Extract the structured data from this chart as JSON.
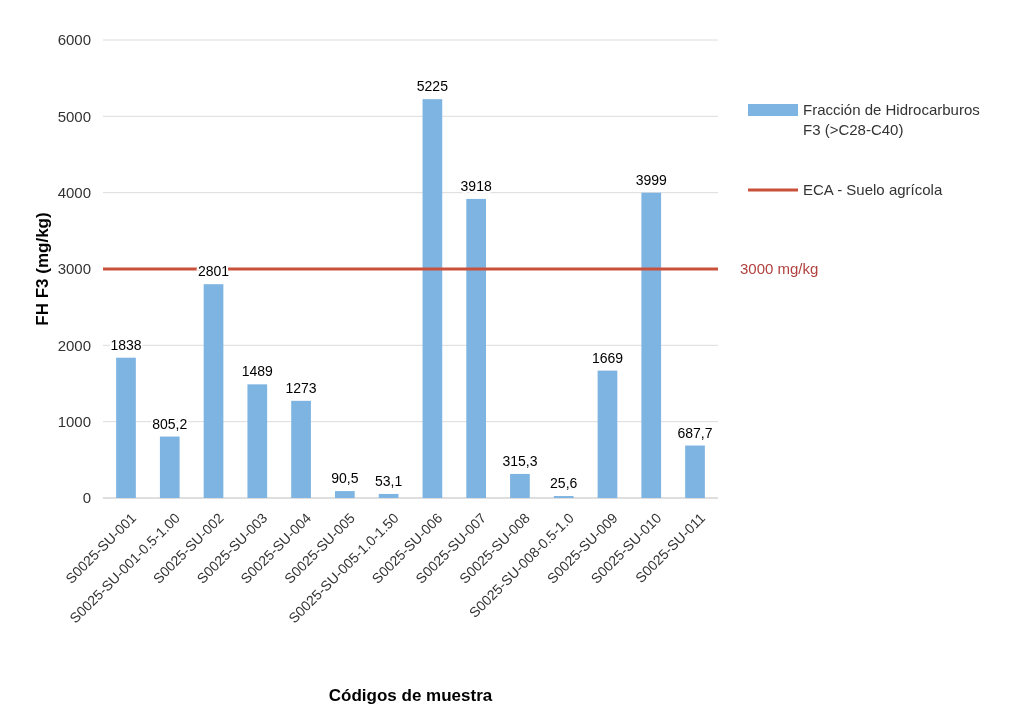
{
  "chart_data": {
    "type": "bar",
    "xlabel": "Códigos de muestra",
    "ylabel": "FH F3 (mg/kg)",
    "categories": [
      "S0025-SU-001",
      "S0025-SU-001-0.5-1.00",
      "S0025-SU-002",
      "S0025-SU-003",
      "S0025-SU-004",
      "S0025-SU-005",
      "S0025-SU-005-1.0-1.50",
      "S0025-SU-006",
      "S0025-SU-007",
      "S0025-SU-008",
      "S0025-SU-008-0.5-1.0",
      "S0025-SU-009",
      "S0025-SU-010",
      "S0025-SU-011"
    ],
    "series": [
      {
        "name": "Fracción de Hidrocarburos F3 (>C28-C40)",
        "color": "#7eb4e2",
        "values": [
          1838,
          805.2,
          2801,
          1489,
          1273,
          90.5,
          53.1,
          5225,
          3918,
          315.3,
          25.6,
          1669,
          3999,
          687.7
        ],
        "value_labels": [
          "1838",
          "805,2",
          "2801",
          "1489",
          "1273",
          "90,5",
          "53,1",
          "5225",
          "3918",
          "315,3",
          "25,6",
          "1669",
          "3999",
          "687,7"
        ]
      }
    ],
    "ref_lines": [
      {
        "axis": "y",
        "value": 3000,
        "label": "ECA - Suelo agrícola",
        "color": "#c9503a"
      }
    ],
    "annotations": [
      "3000 mg/kg"
    ],
    "ylim": [
      0,
      6000
    ],
    "yticks": [
      0,
      1000,
      2000,
      3000,
      4000,
      5000,
      6000
    ],
    "grid": "y",
    "legend": "right"
  }
}
